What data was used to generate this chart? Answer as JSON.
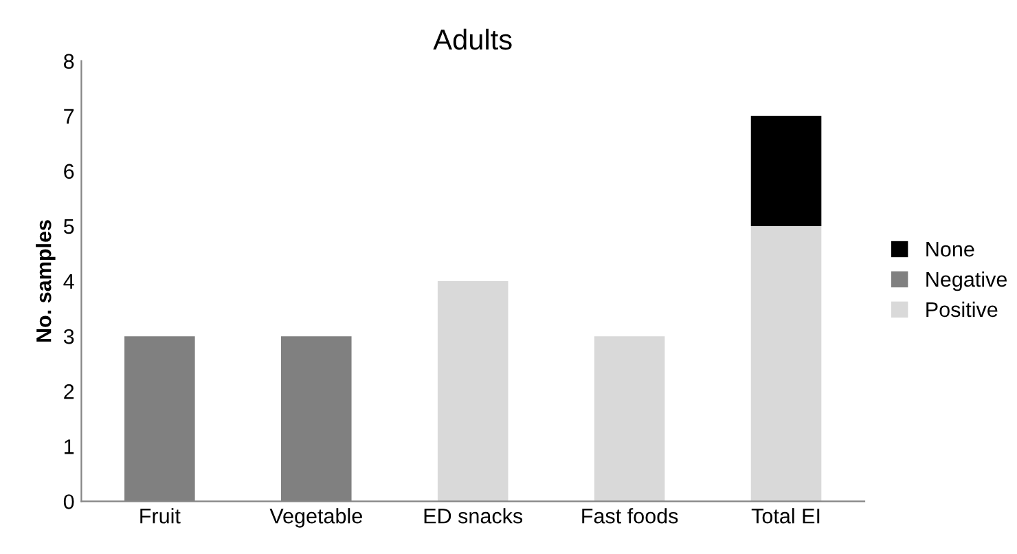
{
  "chart_data": {
    "type": "bar",
    "title": "Adults",
    "ylabel": "No. samples",
    "categories": [
      "Fruit",
      "Vegetable",
      "ED snacks",
      "Fast foods",
      "Total EI"
    ],
    "stacked": true,
    "series": [
      {
        "name": "Positive",
        "color": "#d9d9d9",
        "values": [
          0,
          0,
          4,
          3,
          5
        ]
      },
      {
        "name": "Negative",
        "color": "#808080",
        "values": [
          3,
          3,
          0,
          0,
          0
        ]
      },
      {
        "name": "None",
        "color": "#000000",
        "values": [
          0,
          0,
          0,
          0,
          2
        ]
      }
    ],
    "ylim": [
      0,
      8
    ],
    "yticks": [
      0,
      1,
      2,
      3,
      4,
      5,
      6,
      7,
      8
    ],
    "grid": false,
    "legend": "right"
  }
}
